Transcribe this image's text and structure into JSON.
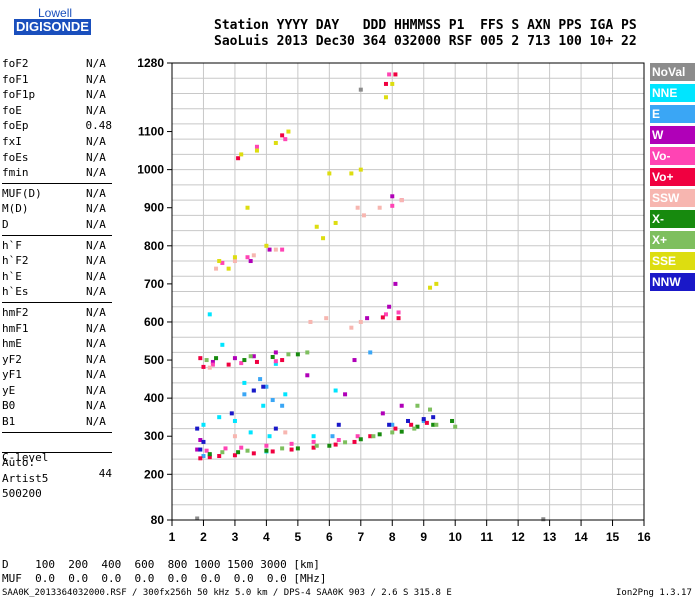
{
  "logo": {
    "line1": "Lowell",
    "line2": "DIGISONDE"
  },
  "header": {
    "line1": "Station YYYY DAY   DDD HHMMSS P1  FFS S AXN PPS IGA PS",
    "line2": "SaoLuis 2013 Dec30 364 032000 RSF 005 2 713 100 10+ 22"
  },
  "params": {
    "group1": [
      {
        "label": "foF2",
        "value": "N/A"
      },
      {
        "label": "foF1",
        "value": "N/A"
      },
      {
        "label": "foF1p",
        "value": "N/A"
      },
      {
        "label": "foE",
        "value": "N/A"
      },
      {
        "label": "foEp",
        "value": "0.48"
      },
      {
        "label": "fxI",
        "value": "N/A"
      },
      {
        "label": "foEs",
        "value": "N/A"
      },
      {
        "label": "fmin",
        "value": "N/A"
      }
    ],
    "group2": [
      {
        "label": "MUF(D)",
        "value": "N/A"
      },
      {
        "label": "M(D)",
        "value": "N/A"
      },
      {
        "label": "D",
        "value": "N/A"
      }
    ],
    "group3": [
      {
        "label": "h`F",
        "value": "N/A"
      },
      {
        "label": "h`F2",
        "value": "N/A"
      },
      {
        "label": "h`E",
        "value": "N/A"
      },
      {
        "label": "h`Es",
        "value": "N/A"
      }
    ],
    "group4": [
      {
        "label": "hmF2",
        "value": "N/A"
      },
      {
        "label": "hmF1",
        "value": "N/A"
      },
      {
        "label": "hmE",
        "value": "N/A"
      },
      {
        "label": "yF2",
        "value": "N/A"
      },
      {
        "label": "yF1",
        "value": "N/A"
      },
      {
        "label": "yE",
        "value": "N/A"
      },
      {
        "label": "B0",
        "value": "N/A"
      },
      {
        "label": "B1",
        "value": "N/A"
      }
    ],
    "clevel": {
      "label": "C-level",
      "value": "44"
    },
    "auto": [
      "Auto:",
      "Artist5",
      "500200"
    ]
  },
  "footer": {
    "d_line": "D    100  200  400  600  800 1000 1500 3000 [km]",
    "muf_line": "MUF  0.0  0.0  0.0  0.0  0.0  0.0  0.0  0.0 [MHz]",
    "source": "SAA0K_2013364032000.RSF / 300fx256h 50 kHz 5.0 km / DPS-4 SAA0K 903 / 2.6 S 315.8 E",
    "version": "Ion2Png 1.3.17"
  },
  "legend": [
    {
      "name": "NoVal",
      "color": "#8c8c8c"
    },
    {
      "name": "NNE",
      "color": "#00e5ff"
    },
    {
      "name": "E",
      "color": "#3aa6f5"
    },
    {
      "name": "W",
      "color": "#b000b8"
    },
    {
      "name": "Vo-",
      "color": "#ff44b4"
    },
    {
      "name": "Vo+",
      "color": "#f00040"
    },
    {
      "name": "SSW",
      "color": "#f7b6b0"
    },
    {
      "name": "X-",
      "color": "#178a0e"
    },
    {
      "name": "X+",
      "color": "#7ebf5e"
    },
    {
      "name": "SSE",
      "color": "#dddd10"
    },
    {
      "name": "NNW",
      "color": "#1a18c8"
    }
  ],
  "chart_data": {
    "type": "scatter",
    "xlim": [
      1,
      16
    ],
    "ylim": [
      80,
      1280
    ],
    "xticks": [
      "1",
      "2",
      "3",
      "4",
      "5",
      "6",
      "7",
      "8",
      "9",
      "10",
      "11",
      "12",
      "13",
      "14",
      "15",
      "16"
    ],
    "yticks": [
      {
        "v": 80,
        "label": "80"
      },
      {
        "v": 200,
        "label": "200"
      },
      {
        "v": 300,
        "label": "300"
      },
      {
        "v": 400,
        "label": "400"
      },
      {
        "v": 500,
        "label": "500"
      },
      {
        "v": 600,
        "label": "600"
      },
      {
        "v": 700,
        "label": "700"
      },
      {
        "v": 800,
        "label": "800"
      },
      {
        "v": 900,
        "label": "900"
      },
      {
        "v": 1000,
        "label": "1000"
      },
      {
        "v": 1100,
        "label": "1100"
      },
      {
        "v": 1280,
        "label": "1280"
      }
    ],
    "ygrid": [
      80,
      120,
      160,
      200,
      240,
      280,
      320,
      360,
      400,
      440,
      480,
      520,
      560,
      600,
      640,
      680,
      720,
      760,
      800,
      840,
      880,
      920,
      960,
      1000,
      1040,
      1080,
      1120,
      1160,
      1200,
      1240,
      1280
    ],
    "grid": true,
    "series": [
      {
        "name": "NoVal",
        "points": [
          [
            1.8,
            84
          ],
          [
            7.0,
            1210
          ],
          [
            12.8,
            82
          ]
        ]
      },
      {
        "name": "NNE",
        "points": [
          [
            2.0,
            330
          ],
          [
            3.5,
            310
          ],
          [
            4.1,
            300
          ],
          [
            2.6,
            540
          ],
          [
            4.6,
            410
          ],
          [
            3.3,
            440
          ],
          [
            2.2,
            620
          ],
          [
            5.5,
            300
          ],
          [
            4.0,
            260
          ],
          [
            3.0,
            340
          ],
          [
            2.5,
            350
          ],
          [
            6.2,
            420
          ],
          [
            3.9,
            380
          ],
          [
            4.3,
            490
          ]
        ]
      },
      {
        "name": "E",
        "points": [
          [
            2.0,
            248
          ],
          [
            3.3,
            410
          ],
          [
            3.6,
            420
          ],
          [
            4.2,
            395
          ],
          [
            4.5,
            380
          ],
          [
            2.2,
            250
          ],
          [
            6.1,
            300
          ],
          [
            7.3,
            520
          ],
          [
            8.0,
            330
          ],
          [
            9.0,
            340
          ],
          [
            3.8,
            450
          ],
          [
            4.0,
            430
          ]
        ]
      },
      {
        "name": "W",
        "points": [
          [
            1.8,
            265
          ],
          [
            1.9,
            290
          ],
          [
            2.3,
            495
          ],
          [
            3.0,
            505
          ],
          [
            3.6,
            510
          ],
          [
            4.3,
            520
          ],
          [
            3.5,
            760
          ],
          [
            4.1,
            790
          ],
          [
            7.9,
            640
          ],
          [
            8.1,
            700
          ],
          [
            8.0,
            930
          ],
          [
            5.3,
            460
          ],
          [
            7.7,
            360
          ],
          [
            8.3,
            380
          ],
          [
            7.2,
            610
          ],
          [
            6.8,
            500
          ],
          [
            6.5,
            410
          ]
        ]
      },
      {
        "name": "Vo-",
        "points": [
          [
            2.1,
            262
          ],
          [
            2.7,
            268
          ],
          [
            3.2,
            270
          ],
          [
            4.0,
            275
          ],
          [
            4.8,
            280
          ],
          [
            5.5,
            285
          ],
          [
            6.3,
            290
          ],
          [
            6.9,
            300
          ],
          [
            2.3,
            488
          ],
          [
            3.2,
            492
          ],
          [
            4.3,
            497
          ],
          [
            2.6,
            755
          ],
          [
            3.4,
            770
          ],
          [
            4.5,
            790
          ],
          [
            7.8,
            620
          ],
          [
            8.2,
            625
          ],
          [
            8.0,
            905
          ],
          [
            8.3,
            920
          ],
          [
            7.9,
            1250
          ],
          [
            4.6,
            1080
          ],
          [
            3.7,
            1060
          ]
        ]
      },
      {
        "name": "Vo+",
        "points": [
          [
            1.9,
            242
          ],
          [
            2.2,
            245
          ],
          [
            2.5,
            248
          ],
          [
            3.0,
            250
          ],
          [
            3.6,
            255
          ],
          [
            4.2,
            260
          ],
          [
            4.8,
            265
          ],
          [
            5.5,
            270
          ],
          [
            6.2,
            278
          ],
          [
            6.8,
            285
          ],
          [
            7.3,
            300
          ],
          [
            8.1,
            320
          ],
          [
            8.6,
            330
          ],
          [
            9.1,
            335
          ],
          [
            2.0,
            482
          ],
          [
            2.8,
            488
          ],
          [
            3.7,
            495
          ],
          [
            4.5,
            500
          ],
          [
            1.9,
            505
          ],
          [
            7.8,
            1225
          ],
          [
            8.1,
            1250
          ],
          [
            3.1,
            1030
          ],
          [
            4.5,
            1090
          ],
          [
            7.7,
            612
          ],
          [
            8.2,
            610
          ]
        ]
      },
      {
        "name": "SSW",
        "points": [
          [
            2.4,
            740
          ],
          [
            3.0,
            760
          ],
          [
            3.6,
            775
          ],
          [
            4.3,
            790
          ],
          [
            5.4,
            600
          ],
          [
            5.9,
            610
          ],
          [
            6.7,
            585
          ],
          [
            7.0,
            600
          ],
          [
            4.6,
            310
          ],
          [
            3.0,
            300
          ],
          [
            2.2,
            480
          ],
          [
            7.6,
            900
          ],
          [
            8.3,
            920
          ],
          [
            6.9,
            900
          ],
          [
            7.1,
            880
          ]
        ]
      },
      {
        "name": "X-",
        "points": [
          [
            2.2,
            253
          ],
          [
            3.1,
            258
          ],
          [
            4.0,
            262
          ],
          [
            5.0,
            268
          ],
          [
            6.0,
            275
          ],
          [
            7.0,
            292
          ],
          [
            7.6,
            305
          ],
          [
            8.3,
            312
          ],
          [
            8.8,
            325
          ],
          [
            9.3,
            330
          ],
          [
            9.9,
            340
          ],
          [
            2.4,
            505
          ],
          [
            3.3,
            500
          ],
          [
            4.2,
            508
          ],
          [
            5.0,
            515
          ]
        ]
      },
      {
        "name": "X+",
        "points": [
          [
            2.6,
            258
          ],
          [
            3.4,
            262
          ],
          [
            4.5,
            268
          ],
          [
            5.6,
            275
          ],
          [
            6.5,
            284
          ],
          [
            7.4,
            300
          ],
          [
            8.0,
            310
          ],
          [
            8.7,
            320
          ],
          [
            9.4,
            330
          ],
          [
            10.0,
            325
          ],
          [
            2.1,
            500
          ],
          [
            3.5,
            510
          ],
          [
            4.7,
            515
          ],
          [
            5.3,
            520
          ],
          [
            8.8,
            380
          ],
          [
            9.2,
            370
          ]
        ]
      },
      {
        "name": "SSE",
        "points": [
          [
            3.2,
            1040
          ],
          [
            3.7,
            1050
          ],
          [
            4.3,
            1070
          ],
          [
            4.7,
            1100
          ],
          [
            5.6,
            850
          ],
          [
            6.2,
            860
          ],
          [
            6.7,
            990
          ],
          [
            7.0,
            1000
          ],
          [
            7.8,
            1190
          ],
          [
            8.0,
            1225
          ],
          [
            2.5,
            760
          ],
          [
            3.0,
            770
          ],
          [
            2.8,
            740
          ],
          [
            5.8,
            820
          ],
          [
            9.2,
            690
          ],
          [
            9.4,
            700
          ],
          [
            3.4,
            900
          ],
          [
            4.0,
            800
          ],
          [
            6.0,
            990
          ]
        ]
      },
      {
        "name": "NNW",
        "points": [
          [
            1.9,
            265
          ],
          [
            2.0,
            285
          ],
          [
            1.8,
            320
          ],
          [
            4.3,
            320
          ],
          [
            7.9,
            330
          ],
          [
            8.5,
            340
          ],
          [
            9.0,
            345
          ],
          [
            9.3,
            350
          ],
          [
            3.6,
            420
          ],
          [
            3.9,
            430
          ],
          [
            2.9,
            360
          ],
          [
            6.3,
            330
          ]
        ]
      }
    ]
  }
}
